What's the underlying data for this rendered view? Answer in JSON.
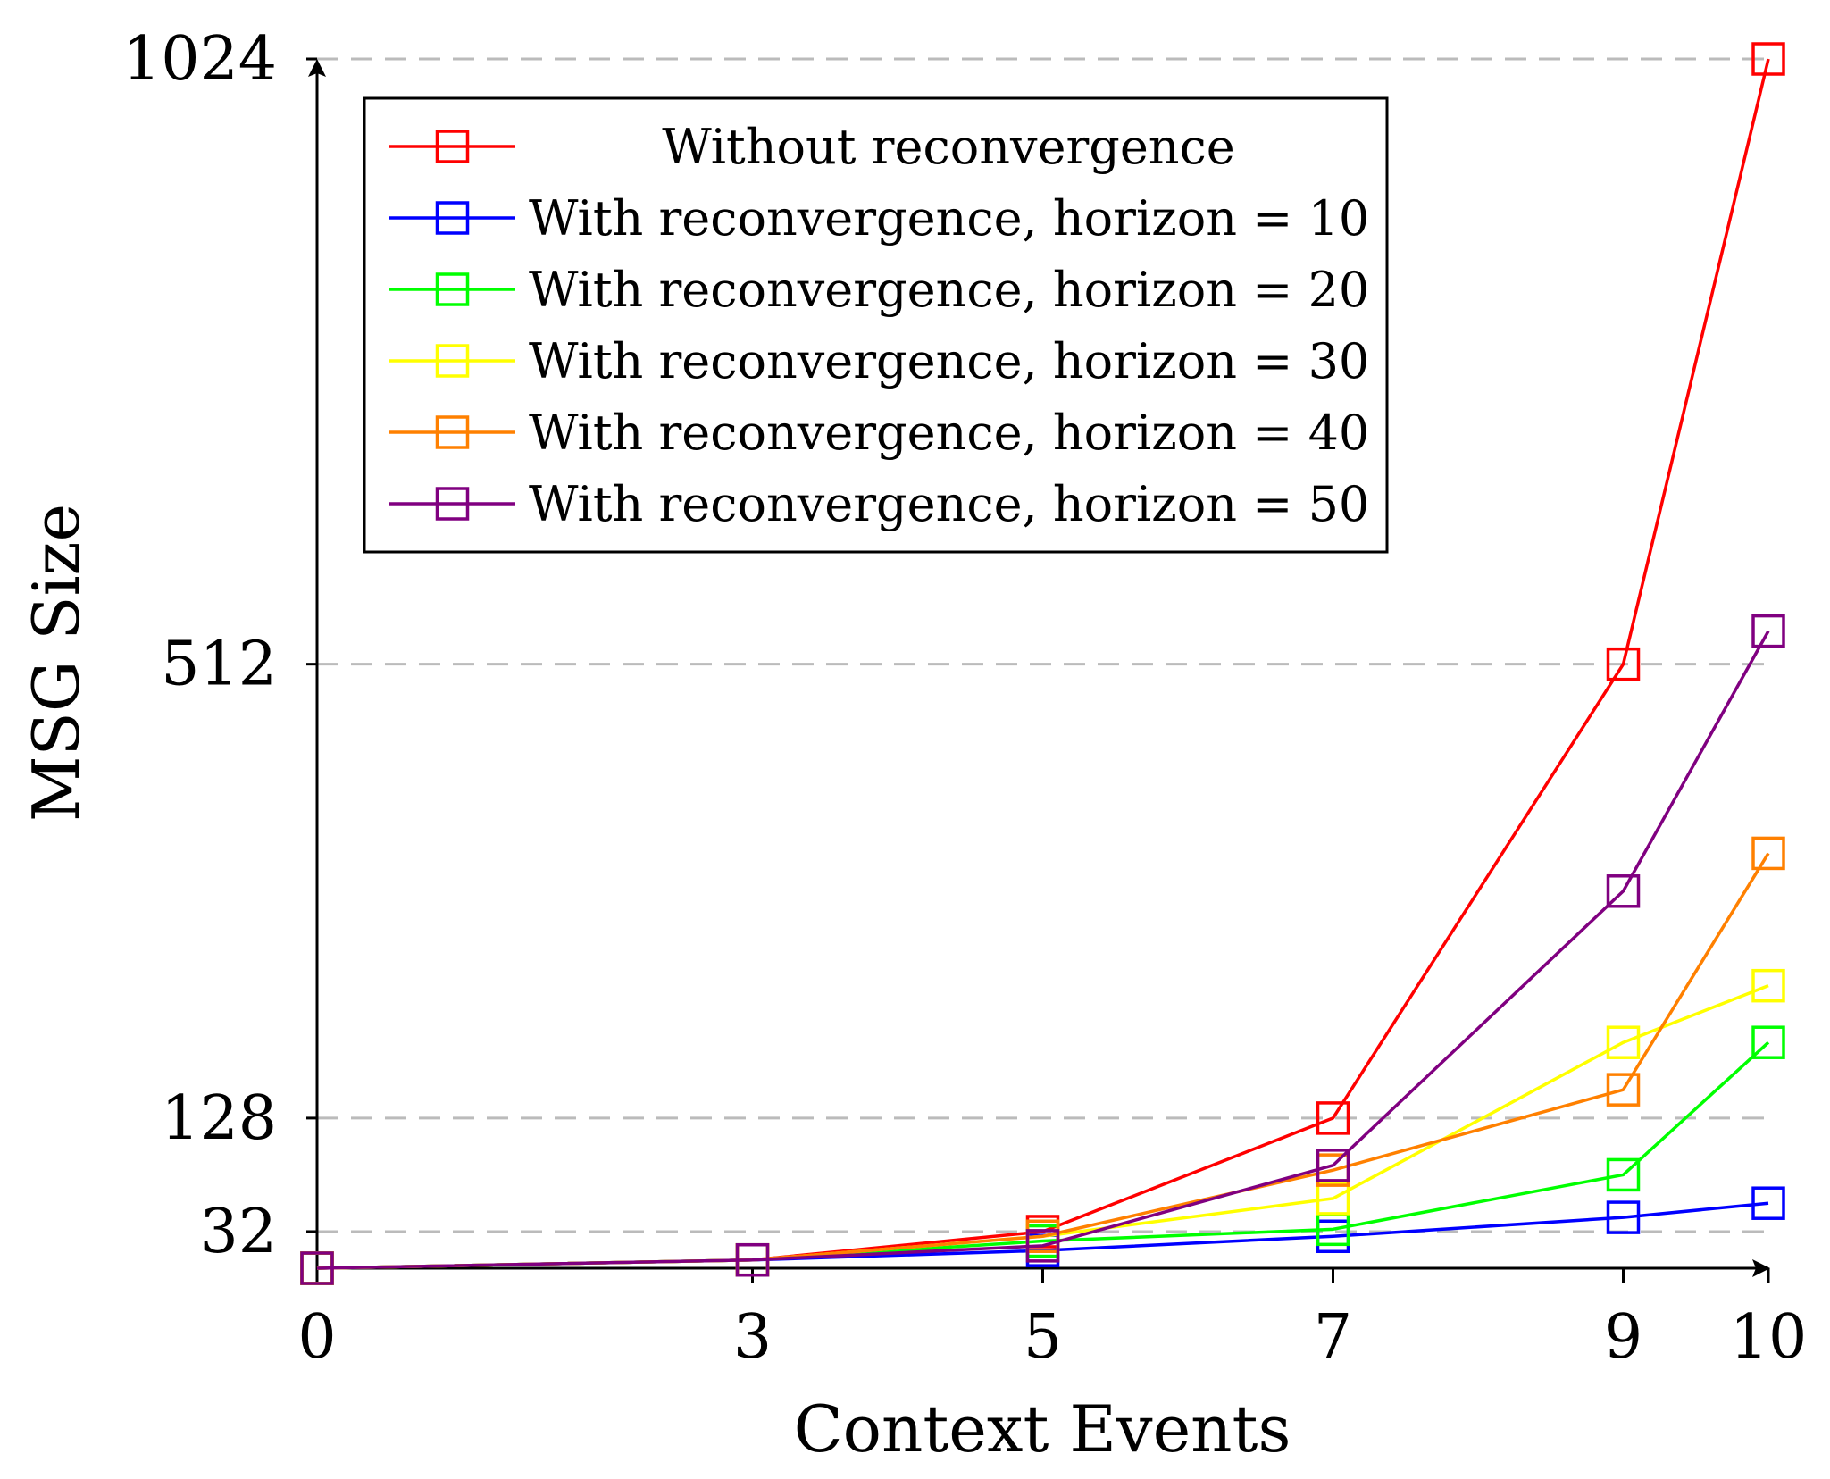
{
  "chart_data": {
    "type": "line",
    "title": "",
    "xlabel": "Context Events",
    "ylabel": "MSG Size",
    "x": [
      0,
      3,
      5,
      7,
      9,
      10
    ],
    "xticks": [
      0,
      3,
      5,
      7,
      9,
      10
    ],
    "yticks": [
      32,
      128,
      512,
      1024
    ],
    "xlim": [
      0,
      10
    ],
    "ylim": [
      1,
      1024
    ],
    "grid": "horizontal dashed at y ticks",
    "legend_position": "top-left",
    "marker": "square",
    "series": [
      {
        "name": "Without reconvergence",
        "color": "#ff0000",
        "values": [
          1,
          8,
          32,
          128,
          512,
          1024
        ]
      },
      {
        "name": "With reconvergence, horizon = 10",
        "color": "#0000ff",
        "values": [
          1,
          8,
          16,
          28,
          44,
          56
        ]
      },
      {
        "name": "With reconvergence, horizon = 20",
        "color": "#00ff00",
        "values": [
          1,
          8,
          24,
          34,
          80,
          192
        ]
      },
      {
        "name": "With reconvergence, horizon = 30",
        "color": "#ffff00",
        "values": [
          1,
          8,
          28,
          60,
          192,
          240
        ]
      },
      {
        "name": "With reconvergence, horizon = 40",
        "color": "#ff8000",
        "values": [
          1,
          8,
          28,
          84,
          152,
          352
        ]
      },
      {
        "name": "With reconvergence, horizon = 50",
        "color": "#800080",
        "values": [
          1,
          8,
          20,
          88,
          320,
          540
        ]
      }
    ]
  }
}
